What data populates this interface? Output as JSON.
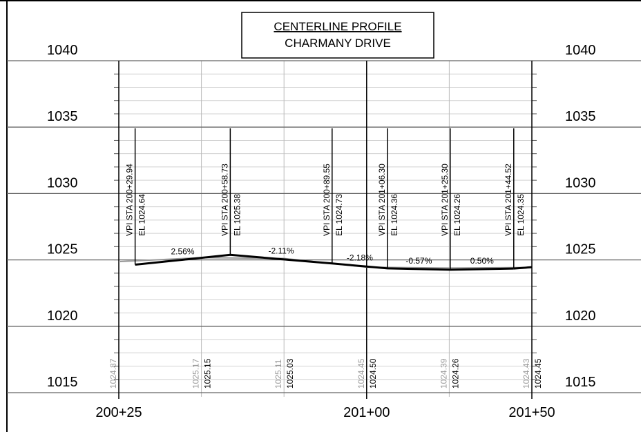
{
  "chart_data": {
    "type": "profile",
    "title": "CENTERLINE PROFILE",
    "subtitle": "CHARMANY DRIVE",
    "xlim": [
      20025,
      20150
    ],
    "ylim": [
      1015,
      1040
    ],
    "xticks": [
      {
        "value": 20025,
        "label": "200+25"
      },
      {
        "value": 20100,
        "label": "201+00"
      },
      {
        "value": 20150,
        "label": "201+50"
      }
    ],
    "x_minor_ticks": [
      20050,
      20075,
      20125
    ],
    "yticks": [
      1015,
      1020,
      1025,
      1030,
      1035,
      1040
    ],
    "y_minor_tick_step": 1,
    "grid": true,
    "existing": {
      "color": "#9a9a9a",
      "x": [
        20025,
        20050,
        20075,
        20100,
        20125,
        20150
      ],
      "values": [
        1024.87,
        1025.17,
        1025.11,
        1024.45,
        1024.39,
        1024.43
      ],
      "value_labels": [
        "1024.87",
        "1025.17",
        "1025.11",
        "1024.45",
        "1024.39",
        "1024.43"
      ]
    },
    "proposed": {
      "color": "#000000",
      "x": [
        20050,
        20075,
        20100,
        20125,
        20150
      ],
      "values": [
        1025.15,
        1025.03,
        1024.5,
        1024.26,
        1024.45
      ],
      "value_labels": [
        "1025.15",
        "1025.03",
        "1024.50",
        "1024.26",
        "1024.45"
      ]
    },
    "vpis": [
      {
        "x": 20029.94,
        "elevation": 1024.64,
        "station_label": "VPI STA 200+29.94",
        "elevation_label": "EL 1024.64"
      },
      {
        "x": 20058.73,
        "elevation": 1025.38,
        "station_label": "VPI STA 200+58.73",
        "elevation_label": "EL 1025.38"
      },
      {
        "x": 20089.55,
        "elevation": 1024.73,
        "station_label": "VPI STA 200+89.55",
        "elevation_label": "EL 1024.73"
      },
      {
        "x": 20106.3,
        "elevation": 1024.36,
        "station_label": "VPI STA 201+06.30",
        "elevation_label": "EL 1024.36"
      },
      {
        "x": 20125.3,
        "elevation": 1024.26,
        "station_label": "VPI STA 201+25.30",
        "elevation_label": "EL 1024.26"
      },
      {
        "x": 20144.52,
        "elevation": 1024.35,
        "station_label": "VPI STA 201+44.52",
        "elevation_label": "EL 1024.35"
      }
    ],
    "grades": [
      "2.56%",
      "-2.11%",
      "-2.18%",
      "-0.57%",
      "0.50%"
    ]
  }
}
